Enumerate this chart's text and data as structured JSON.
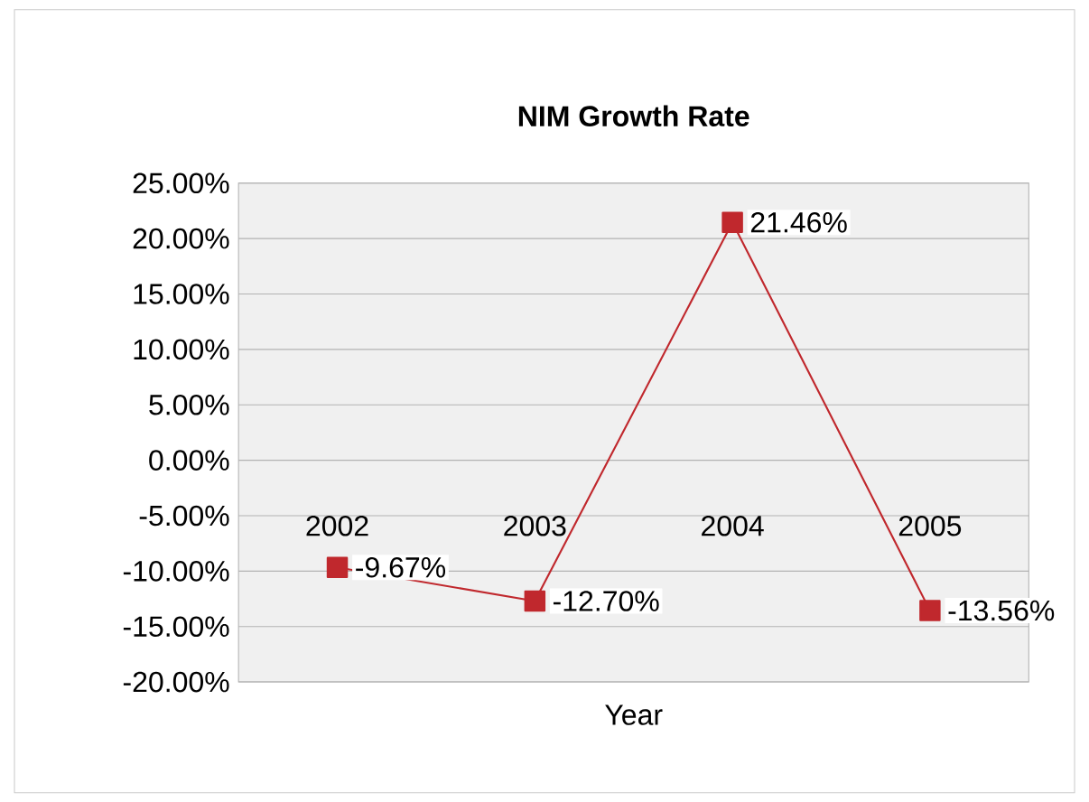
{
  "chart_data": {
    "type": "line",
    "title": "NIM Growth Rate",
    "xlabel": "Year",
    "categories": [
      "2002",
      "2003",
      "2004",
      "2005"
    ],
    "series": [
      {
        "color": "#c0282d",
        "values": [
          -9.67,
          -12.7,
          21.46,
          -13.56
        ],
        "value_labels": [
          "-9.67%",
          "-12.70%",
          "21.46%",
          "-13.56%"
        ]
      }
    ],
    "ylim": [
      -20,
      25
    ],
    "yticks": [
      {
        "value": -20,
        "label": "-20.00%"
      },
      {
        "value": -15,
        "label": "-15.00%"
      },
      {
        "value": -10,
        "label": "-10.00%"
      },
      {
        "value": -5,
        "label": "-5.00%"
      },
      {
        "value": 0,
        "label": "0.00%"
      },
      {
        "value": 5,
        "label": "5.00%"
      },
      {
        "value": 10,
        "label": "10.00%"
      },
      {
        "value": 15,
        "label": "15.00%"
      },
      {
        "value": 20,
        "label": "20.00%"
      },
      {
        "value": 25,
        "label": "25.00%"
      }
    ],
    "grid": "y",
    "marker": "square",
    "legend": false
  }
}
